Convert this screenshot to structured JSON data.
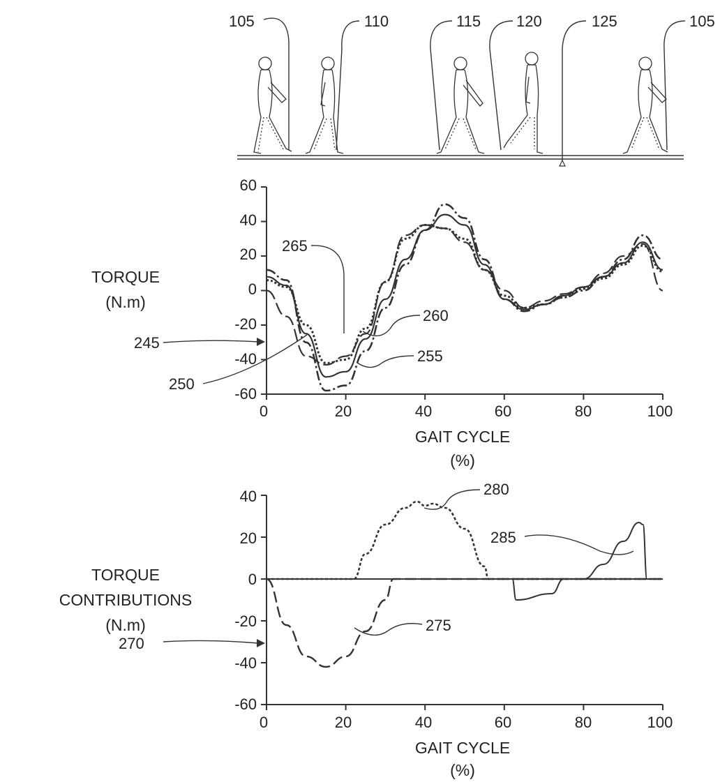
{
  "gait_phases": {
    "markers": [
      "105",
      "110",
      "115",
      "120",
      "125",
      "105"
    ]
  },
  "chart_data": [
    {
      "type": "line",
      "ylabel_lines": [
        "TORQUE",
        "(N.m)"
      ],
      "xlabel_lines": [
        "GAIT CYCLE",
        "(%)"
      ],
      "xlim": [
        0,
        100
      ],
      "ylim": [
        -60,
        60
      ],
      "xticks": [
        "0",
        "20",
        "40",
        "60",
        "80",
        "100"
      ],
      "yticks": [
        "60",
        "40",
        "20",
        "0",
        "-20",
        "-40",
        "-60"
      ],
      "callouts": [
        "265",
        "260",
        "255",
        "250",
        "245"
      ],
      "series": [
        {
          "x": [
            0,
            5,
            10,
            15,
            20,
            25,
            30,
            35,
            40,
            45,
            50,
            55,
            60,
            65,
            70,
            75,
            80,
            85,
            90,
            95,
            100
          ],
          "values": [
            12,
            6,
            -30,
            -58,
            -55,
            -35,
            -10,
            15,
            35,
            50,
            42,
            18,
            -5,
            -12,
            -8,
            -4,
            0,
            8,
            18,
            32,
            18
          ]
        },
        {
          "x": [
            0,
            5,
            10,
            15,
            20,
            25,
            30,
            35,
            40,
            45,
            50,
            55,
            60,
            65,
            70,
            75,
            80,
            85,
            90,
            95,
            100
          ],
          "values": [
            8,
            3,
            -25,
            -50,
            -47,
            -28,
            -5,
            18,
            35,
            44,
            38,
            15,
            -5,
            -11,
            -8,
            -3,
            2,
            8,
            16,
            28,
            12
          ]
        },
        {
          "x": [
            0,
            5,
            10,
            15,
            20,
            25,
            30,
            35,
            40,
            45,
            50,
            55,
            60,
            65,
            70,
            75,
            80,
            85,
            90,
            95,
            100
          ],
          "values": [
            6,
            2,
            -20,
            -42,
            -40,
            -22,
            5,
            30,
            38,
            36,
            30,
            12,
            -3,
            -10,
            -8,
            -4,
            1,
            7,
            15,
            26,
            11
          ]
        },
        {
          "x": [
            0,
            5,
            10,
            15,
            20,
            25,
            30,
            35,
            40,
            45,
            50,
            55,
            60,
            65,
            70,
            75,
            80,
            85,
            90,
            95,
            100
          ],
          "values": [
            0,
            -15,
            -38,
            -43,
            -38,
            -25,
            5,
            32,
            38,
            36,
            28,
            12,
            0,
            -10,
            -6,
            -2,
            2,
            10,
            20,
            27,
            0
          ]
        }
      ]
    },
    {
      "type": "line",
      "ylabel_lines": [
        "TORQUE",
        "CONTRIBUTIONS",
        "(N.m)"
      ],
      "xlabel_lines": [
        "GAIT CYCLE",
        "(%)"
      ],
      "xlim": [
        0,
        100
      ],
      "ylim": [
        -60,
        40
      ],
      "xticks": [
        "0",
        "20",
        "40",
        "60",
        "80",
        "100"
      ],
      "yticks": [
        "40",
        "20",
        "0",
        "-20",
        "-40",
        "-60"
      ],
      "callouts": [
        "280",
        "285",
        "275",
        "270"
      ],
      "series": [
        {
          "x": [
            0,
            5,
            10,
            15,
            20,
            25,
            30,
            32,
            60,
            100
          ],
          "values": [
            0,
            -22,
            -37,
            -42,
            -37,
            -25,
            -10,
            0,
            0,
            0
          ]
        },
        {
          "x": [
            0,
            22,
            25,
            30,
            35,
            38,
            40,
            42,
            45,
            50,
            55,
            56,
            100
          ],
          "values": [
            0,
            0,
            12,
            26,
            34,
            37,
            35,
            36,
            34,
            24,
            6,
            0,
            0
          ]
        },
        {
          "x": [
            0,
            62,
            63,
            72,
            75,
            100
          ],
          "values": [
            0,
            0,
            -10,
            -7,
            0,
            0
          ]
        },
        {
          "x": [
            0,
            80,
            85,
            90,
            94,
            95,
            96,
            100
          ],
          "values": [
            0,
            0,
            7,
            18,
            27,
            26,
            0,
            0
          ]
        }
      ]
    }
  ]
}
